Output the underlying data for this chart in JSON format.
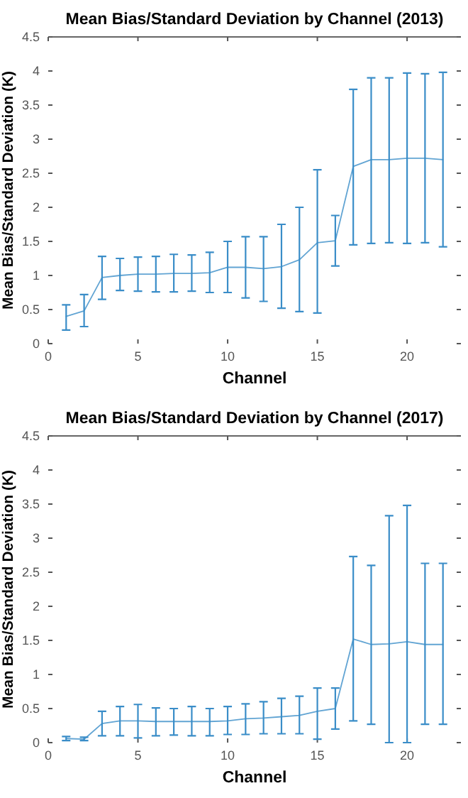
{
  "chart_data": [
    {
      "type": "line",
      "title": "Mean Bias/Standard Deviation by Channel (2013)",
      "xlabel": "Channel",
      "ylabel": "Mean Bias/Standard Deviation (K)",
      "x": [
        1,
        2,
        3,
        4,
        5,
        6,
        7,
        8,
        9,
        10,
        11,
        12,
        13,
        14,
        15,
        16,
        17,
        18,
        19,
        20,
        21,
        22
      ],
      "series": [
        {
          "color": "#3a8dc8",
          "values": [
            0.4,
            0.48,
            0.97,
            1.0,
            1.02,
            1.02,
            1.03,
            1.03,
            1.04,
            1.12,
            1.12,
            1.1,
            1.13,
            1.23,
            1.48,
            1.51,
            2.6,
            2.7,
            2.7,
            2.72,
            2.72,
            2.7
          ],
          "errors": [
            [
              0.2,
              0.57
            ],
            [
              0.25,
              0.72
            ],
            [
              0.65,
              1.28
            ],
            [
              0.78,
              1.25
            ],
            [
              0.77,
              1.27
            ],
            [
              0.76,
              1.28
            ],
            [
              0.76,
              1.31
            ],
            [
              0.77,
              1.3
            ],
            [
              0.75,
              1.34
            ],
            [
              0.75,
              1.5
            ],
            [
              0.67,
              1.57
            ],
            [
              0.62,
              1.57
            ],
            [
              0.52,
              1.75
            ],
            [
              0.47,
              2.0
            ],
            [
              0.45,
              2.55
            ],
            [
              1.14,
              1.88
            ],
            [
              1.45,
              3.73
            ],
            [
              1.47,
              3.9
            ],
            [
              1.48,
              3.9
            ],
            [
              1.47,
              3.97
            ],
            [
              1.48,
              3.96
            ],
            [
              1.42,
              3.98
            ]
          ]
        }
      ],
      "xlim": [
        0,
        23
      ],
      "xticks": [
        0,
        5,
        10,
        15,
        20
      ],
      "ylim": [
        0,
        4.5
      ],
      "yticks": [
        0,
        0.5,
        1,
        1.5,
        2,
        2.5,
        3,
        3.5,
        4,
        4.5
      ],
      "grid": false,
      "marker": "none",
      "line_style": "solid"
    },
    {
      "type": "line",
      "title": "Mean Bias/Standard Deviation by Channel (2017)",
      "xlabel": "Channel",
      "ylabel": "Mean Bias/Standard Deviation (K)",
      "x": [
        1,
        2,
        3,
        4,
        5,
        6,
        7,
        8,
        9,
        10,
        11,
        12,
        13,
        14,
        15,
        16,
        17,
        18,
        19,
        20,
        21,
        22
      ],
      "series": [
        {
          "color": "#3a8dc8",
          "values": [
            0.06,
            0.05,
            0.28,
            0.32,
            0.32,
            0.31,
            0.31,
            0.31,
            0.31,
            0.32,
            0.35,
            0.36,
            0.38,
            0.4,
            0.46,
            0.5,
            1.52,
            1.44,
            1.45,
            1.48,
            1.44,
            1.44
          ],
          "errors": [
            [
              0.03,
              0.09
            ],
            [
              0.03,
              0.08
            ],
            [
              0.1,
              0.46
            ],
            [
              0.1,
              0.53
            ],
            [
              0.07,
              0.56
            ],
            [
              0.1,
              0.51
            ],
            [
              0.11,
              0.5
            ],
            [
              0.1,
              0.53
            ],
            [
              0.1,
              0.5
            ],
            [
              0.12,
              0.53
            ],
            [
              0.12,
              0.57
            ],
            [
              0.13,
              0.6
            ],
            [
              0.13,
              0.65
            ],
            [
              0.13,
              0.68
            ],
            [
              0.05,
              0.8
            ],
            [
              0.2,
              0.8
            ],
            [
              0.32,
              2.73
            ],
            [
              0.27,
              2.6
            ],
            [
              0,
              3.33
            ],
            [
              0,
              3.48
            ],
            [
              0.27,
              2.63
            ],
            [
              0.27,
              2.63
            ]
          ]
        }
      ],
      "xlim": [
        0,
        23
      ],
      "xticks": [
        0,
        5,
        10,
        15,
        20
      ],
      "ylim": [
        0,
        4.5
      ],
      "yticks": [
        0,
        0.5,
        1,
        1.5,
        2,
        2.5,
        3,
        3.5,
        4,
        4.5
      ],
      "grid": false,
      "marker": "none",
      "line_style": "solid"
    }
  ]
}
